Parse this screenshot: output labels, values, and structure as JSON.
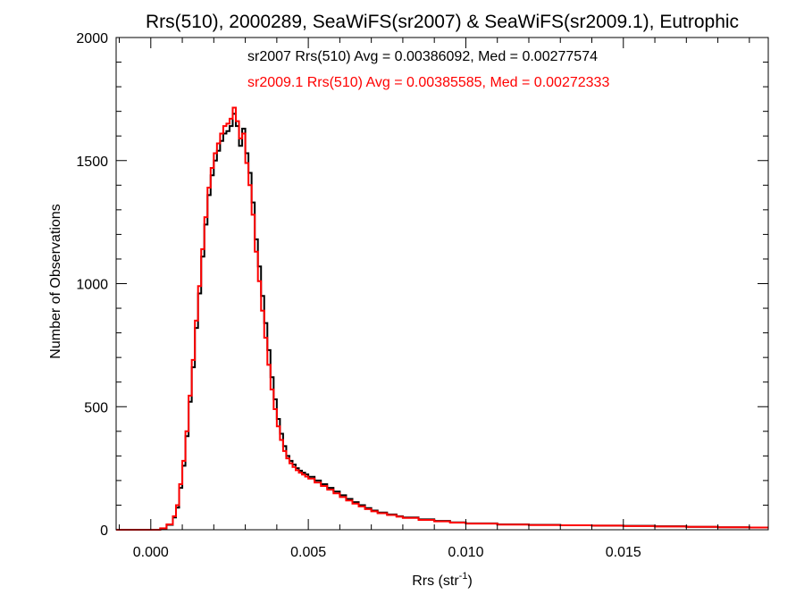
{
  "chart_data": {
    "type": "line",
    "title": "Rrs(510), 2000289, SeaWiFS(sr2007) & SeaWiFS(sr2009.1), Eutrophic",
    "xlabel_main": "Rrs (str",
    "xlabel_superscript": "-1",
    "xlabel_close": ")",
    "ylabel": "Number of Observations",
    "xlim": [
      -0.0011,
      0.0196
    ],
    "ylim": [
      0,
      2000
    ],
    "x_ticks": [
      0.0,
      0.005,
      0.01,
      0.015
    ],
    "x_tick_labels": [
      "0.000",
      "0.005",
      "0.010",
      "0.015"
    ],
    "y_ticks": [
      0,
      500,
      1000,
      1500,
      2000
    ],
    "y_tick_labels": [
      "0",
      "500",
      "1000",
      "1500",
      "2000"
    ],
    "grid": false,
    "series": [
      {
        "label": "sr2007 Rrs(510) Avg = 0.00386092, Med = 0.00277574",
        "color": "#000000",
        "points": [
          [
            -0.0011,
            0
          ],
          [
            0.0,
            0
          ],
          [
            0.0003,
            5
          ],
          [
            0.0005,
            20
          ],
          [
            0.0007,
            50
          ],
          [
            0.0008,
            90
          ],
          [
            0.0009,
            170
          ],
          [
            0.001,
            260
          ],
          [
            0.0011,
            380
          ],
          [
            0.0012,
            520
          ],
          [
            0.0013,
            660
          ],
          [
            0.0014,
            820
          ],
          [
            0.0015,
            960
          ],
          [
            0.0016,
            1110
          ],
          [
            0.0017,
            1240
          ],
          [
            0.0018,
            1360
          ],
          [
            0.0019,
            1440
          ],
          [
            0.002,
            1500
          ],
          [
            0.0021,
            1540
          ],
          [
            0.0022,
            1580
          ],
          [
            0.0023,
            1610
          ],
          [
            0.0024,
            1620
          ],
          [
            0.0025,
            1640
          ],
          [
            0.0026,
            1690
          ],
          [
            0.0027,
            1640
          ],
          [
            0.0028,
            1560
          ],
          [
            0.0029,
            1630
          ],
          [
            0.003,
            1530
          ],
          [
            0.0031,
            1450
          ],
          [
            0.0032,
            1330
          ],
          [
            0.0033,
            1180
          ],
          [
            0.0034,
            1070
          ],
          [
            0.0035,
            950
          ],
          [
            0.0036,
            840
          ],
          [
            0.0037,
            730
          ],
          [
            0.0038,
            620
          ],
          [
            0.0039,
            530
          ],
          [
            0.004,
            450
          ],
          [
            0.0041,
            390
          ],
          [
            0.0042,
            340
          ],
          [
            0.0043,
            300
          ],
          [
            0.0044,
            280
          ],
          [
            0.0045,
            265
          ],
          [
            0.0046,
            250
          ],
          [
            0.0047,
            240
          ],
          [
            0.0048,
            232
          ],
          [
            0.0049,
            225
          ],
          [
            0.005,
            215
          ],
          [
            0.0052,
            200
          ],
          [
            0.0054,
            185
          ],
          [
            0.0056,
            170
          ],
          [
            0.0058,
            155
          ],
          [
            0.006,
            140
          ],
          [
            0.0062,
            125
          ],
          [
            0.0064,
            112
          ],
          [
            0.0066,
            100
          ],
          [
            0.0068,
            88
          ],
          [
            0.007,
            78
          ],
          [
            0.0072,
            70
          ],
          [
            0.0075,
            62
          ],
          [
            0.0078,
            55
          ],
          [
            0.008,
            50
          ],
          [
            0.0085,
            42
          ],
          [
            0.009,
            36
          ],
          [
            0.0095,
            30
          ],
          [
            0.01,
            26
          ],
          [
            0.011,
            22
          ],
          [
            0.012,
            20
          ],
          [
            0.013,
            18
          ],
          [
            0.014,
            17
          ],
          [
            0.015,
            16
          ],
          [
            0.016,
            14
          ],
          [
            0.017,
            12
          ],
          [
            0.018,
            10
          ],
          [
            0.019,
            9
          ],
          [
            0.0196,
            9
          ]
        ]
      },
      {
        "label": "sr2009.1 Rrs(510) Avg = 0.00385585, Med = 0.00272333",
        "color": "#ff0000",
        "points": [
          [
            -0.0011,
            0
          ],
          [
            0.0,
            0
          ],
          [
            0.0003,
            6
          ],
          [
            0.0005,
            22
          ],
          [
            0.0007,
            55
          ],
          [
            0.0008,
            100
          ],
          [
            0.0009,
            185
          ],
          [
            0.001,
            280
          ],
          [
            0.0011,
            400
          ],
          [
            0.0012,
            545
          ],
          [
            0.0013,
            690
          ],
          [
            0.0014,
            850
          ],
          [
            0.0015,
            990
          ],
          [
            0.0016,
            1140
          ],
          [
            0.0017,
            1270
          ],
          [
            0.0018,
            1390
          ],
          [
            0.0019,
            1470
          ],
          [
            0.002,
            1530
          ],
          [
            0.0021,
            1570
          ],
          [
            0.0022,
            1610
          ],
          [
            0.0023,
            1640
          ],
          [
            0.0024,
            1650
          ],
          [
            0.0025,
            1670
          ],
          [
            0.0026,
            1715
          ],
          [
            0.0027,
            1660
          ],
          [
            0.0028,
            1590
          ],
          [
            0.0029,
            1610
          ],
          [
            0.003,
            1490
          ],
          [
            0.0031,
            1400
          ],
          [
            0.0032,
            1280
          ],
          [
            0.0033,
            1130
          ],
          [
            0.0034,
            1010
          ],
          [
            0.0035,
            890
          ],
          [
            0.0036,
            780
          ],
          [
            0.0037,
            670
          ],
          [
            0.0038,
            570
          ],
          [
            0.0039,
            490
          ],
          [
            0.004,
            420
          ],
          [
            0.0041,
            365
          ],
          [
            0.0042,
            320
          ],
          [
            0.0043,
            290
          ],
          [
            0.0044,
            270
          ],
          [
            0.0045,
            255
          ],
          [
            0.0046,
            242
          ],
          [
            0.0047,
            232
          ],
          [
            0.0048,
            224
          ],
          [
            0.0049,
            216
          ],
          [
            0.005,
            208
          ],
          [
            0.0052,
            192
          ],
          [
            0.0054,
            178
          ],
          [
            0.0056,
            163
          ],
          [
            0.0058,
            148
          ],
          [
            0.006,
            133
          ],
          [
            0.0062,
            119
          ],
          [
            0.0064,
            106
          ],
          [
            0.0066,
            95
          ],
          [
            0.0068,
            84
          ],
          [
            0.007,
            75
          ],
          [
            0.0072,
            67
          ],
          [
            0.0075,
            60
          ],
          [
            0.0078,
            53
          ],
          [
            0.008,
            48
          ],
          [
            0.0085,
            40
          ],
          [
            0.009,
            34
          ],
          [
            0.0095,
            29
          ],
          [
            0.01,
            25
          ],
          [
            0.011,
            21
          ],
          [
            0.012,
            19
          ],
          [
            0.013,
            18
          ],
          [
            0.014,
            17
          ],
          [
            0.015,
            15
          ],
          [
            0.016,
            13
          ],
          [
            0.017,
            12
          ],
          [
            0.018,
            10
          ],
          [
            0.019,
            9
          ],
          [
            0.0196,
            9
          ]
        ]
      }
    ]
  }
}
